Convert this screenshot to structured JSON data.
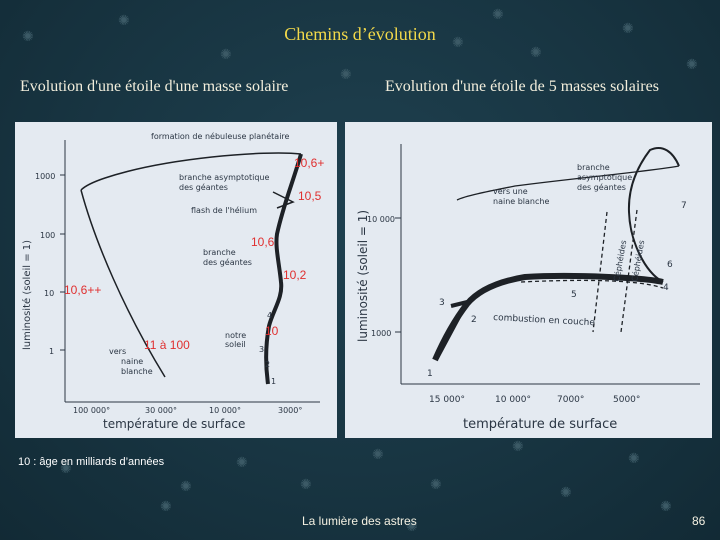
{
  "slide": {
    "title": "Chemins d’évolution",
    "left_subtitle": "Evolution d'une étoile d'une masse solaire",
    "right_subtitle": "Evolution d'une étoile de 5 masses solaires",
    "footnote": "10 : âge en milliards d’années",
    "footer_title": "La lumière des astres",
    "page_number": "86"
  },
  "left_diagram": {
    "ylabel": "luminosité (soleil = 1)",
    "xlabel": "température de surface",
    "y_ticks": [
      "1000",
      "100",
      "10",
      "1"
    ],
    "x_ticks": [
      "100 000°",
      "30 000°",
      "10 000°",
      "3000°"
    ],
    "annotations": {
      "planetary_nebula": "formation de nébuleuse planétaire",
      "agb_line1": "branche asymptotique",
      "agb_line2": "des géantes",
      "helium_flash": "flash de l'hélium",
      "giant_branch_line1": "branche",
      "giant_branch_line2": "des géantes",
      "white_dwarf_line1": "vers",
      "white_dwarf_line2": "naine",
      "white_dwarf_line3": "blanche",
      "our_sun_line1": "notre",
      "our_sun_line2": "soleil",
      "point_1": "1",
      "point_2": "2",
      "point_3": "3",
      "point_4": "4"
    },
    "ages": {
      "age_a": "10,6+",
      "age_b": "10,5",
      "age_c": "10,6",
      "age_d": "10,2",
      "age_e": "10,6++",
      "age_f": "11 à 100",
      "age_g": "10"
    }
  },
  "right_diagram": {
    "ylabel": "luminosité (soleil = 1)",
    "xlabel": "température de surface",
    "y_ticks": [
      "10 000",
      "1000"
    ],
    "x_ticks": [
      "15 000°",
      "10 000°",
      "7000°",
      "5000°"
    ],
    "annotations": {
      "agb_line1": "branche",
      "agb_line2": "asymptotique",
      "agb_line3": "des géantes",
      "white_dwarf_line1": "vers une",
      "white_dwarf_line2": "naine blanche",
      "cepheids_a": "Céphéides",
      "cepheids_b": "Céphéides",
      "core_combustion": "combustion en couche",
      "point_1": "1",
      "point_2": "2",
      "point_3": "3",
      "point_4": "4",
      "point_5": "5",
      "point_6": "6",
      "point_7": "7"
    }
  }
}
